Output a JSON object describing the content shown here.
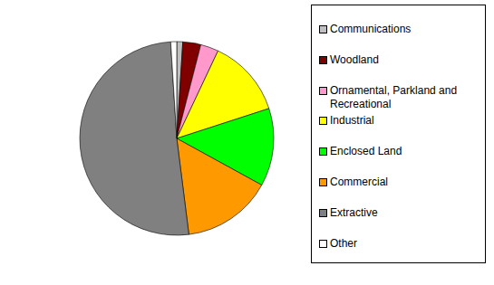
{
  "chart_data": {
    "type": "pie",
    "categories": [
      "Communications",
      "Woodland",
      "Ornamental, Parkland and Recreational",
      "Industrial",
      "Enclosed Land",
      "Commercial",
      "Extractive",
      "Other"
    ],
    "values": [
      1,
      3,
      3,
      13,
      13,
      15,
      51,
      1
    ],
    "colors": [
      "#c0c0c0",
      "#800000",
      "#ff99cc",
      "#ffff00",
      "#00ff00",
      "#ff9900",
      "#808080",
      "#ffffff"
    ],
    "legend": "right"
  }
}
